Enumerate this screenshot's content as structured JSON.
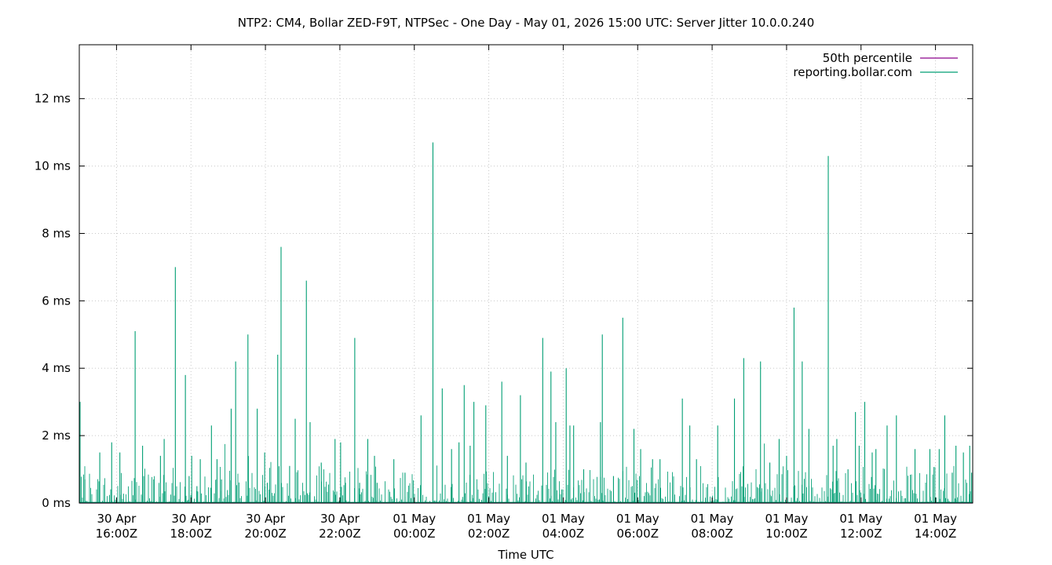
{
  "chart_data": {
    "type": "line",
    "title": "NTP2: CM4, Bollar ZED-F9T, NTPSec - One Day - May 01, 2026 15:00 UTC: Server Jitter 10.0.0.240",
    "xlabel": "Time UTC",
    "ylabel": "",
    "x_unit": "hours relative to 2026-04-30 15:00Z",
    "xlim": [
      0.0,
      24.0
    ],
    "ylim": [
      0,
      13.6
    ],
    "grid": true,
    "legend_position": "top-right",
    "y_ticks": [
      {
        "value": 0,
        "label": "0 ms"
      },
      {
        "value": 2,
        "label": "2 ms"
      },
      {
        "value": 4,
        "label": "4 ms"
      },
      {
        "value": 6,
        "label": "6 ms"
      },
      {
        "value": 8,
        "label": "8 ms"
      },
      {
        "value": 10,
        "label": "10 ms"
      },
      {
        "value": 12,
        "label": "12 ms"
      }
    ],
    "x_ticks": [
      {
        "value": 1,
        "line1": "30 Apr",
        "line2": "16:00Z"
      },
      {
        "value": 3,
        "line1": "30 Apr",
        "line2": "18:00Z"
      },
      {
        "value": 5,
        "line1": "30 Apr",
        "line2": "20:00Z"
      },
      {
        "value": 7,
        "line1": "30 Apr",
        "line2": "22:00Z"
      },
      {
        "value": 9,
        "line1": "01 May",
        "line2": "00:00Z"
      },
      {
        "value": 11,
        "line1": "01 May",
        "line2": "02:00Z"
      },
      {
        "value": 13,
        "line1": "01 May",
        "line2": "04:00Z"
      },
      {
        "value": 15,
        "line1": "01 May",
        "line2": "06:00Z"
      },
      {
        "value": 17,
        "line1": "01 May",
        "line2": "08:00Z"
      },
      {
        "value": 19,
        "line1": "01 May",
        "line2": "10:00Z"
      },
      {
        "value": 21,
        "line1": "01 May",
        "line2": "12:00Z"
      },
      {
        "value": 23,
        "line1": "01 May",
        "line2": "14:00Z"
      }
    ],
    "series": [
      {
        "name": "50th percentile",
        "color": "#8b008b",
        "baseline": 0.0,
        "x": [
          0.0,
          24.0
        ],
        "values": [
          0.0,
          0.0
        ]
      },
      {
        "name": "reporting.bollar.com",
        "color": "#009e73",
        "baseline": 0.02,
        "x": [
          0.02,
          0.15,
          0.55,
          0.87,
          1.09,
          1.5,
          1.7,
          2.0,
          2.18,
          2.28,
          2.58,
          2.85,
          2.95,
          3.02,
          3.16,
          3.25,
          3.55,
          3.7,
          3.82,
          4.08,
          4.2,
          4.53,
          4.78,
          4.98,
          5.05,
          5.1,
          5.33,
          5.42,
          5.65,
          5.8,
          6.1,
          6.2,
          6.5,
          6.87,
          7.02,
          7.15,
          7.4,
          7.53,
          7.75,
          7.93,
          8.0,
          8.45,
          8.75,
          9.18,
          9.5,
          9.75,
          10.0,
          10.2,
          10.34,
          10.5,
          10.6,
          10.92,
          11.35,
          11.5,
          11.85,
          12.0,
          12.45,
          12.67,
          12.8,
          13.08,
          13.18,
          13.28,
          13.55,
          14.0,
          14.05,
          14.35,
          14.6,
          14.9,
          15.08,
          15.4,
          15.6,
          16.2,
          16.4,
          16.58,
          17.15,
          17.6,
          17.85,
          18.3,
          18.55,
          18.8,
          19.0,
          19.2,
          19.42,
          19.6,
          20.12,
          20.25,
          20.35,
          20.65,
          20.85,
          20.95,
          21.1,
          21.3,
          21.4,
          21.7,
          21.95,
          22.45,
          22.85,
          23.1,
          23.25,
          23.45,
          23.55,
          23.75,
          23.92,
          23.97
        ],
        "values": [
          3.0,
          0.7,
          1.5,
          1.8,
          1.5,
          5.1,
          1.7,
          0.7,
          1.4,
          1.9,
          7.0,
          3.8,
          0.8,
          1.4,
          0.5,
          1.3,
          2.3,
          1.3,
          0.7,
          2.8,
          4.2,
          5.0,
          2.8,
          1.5,
          0.6,
          0.4,
          4.4,
          7.6,
          1.1,
          2.5,
          6.6,
          2.4,
          1.2,
          1.9,
          1.8,
          0.6,
          4.9,
          0.6,
          1.9,
          1.4,
          0.6,
          1.3,
          0.9,
          2.6,
          10.7,
          3.4,
          1.6,
          1.8,
          3.5,
          1.7,
          3.0,
          2.9,
          3.6,
          1.4,
          3.2,
          1.2,
          4.9,
          3.9,
          2.4,
          4.0,
          2.3,
          2.3,
          1.0,
          2.4,
          5.0,
          0.8,
          5.5,
          2.2,
          1.6,
          1.3,
          1.3,
          3.1,
          2.3,
          1.3,
          2.3,
          3.1,
          4.3,
          4.2,
          1.2,
          1.9,
          1.4,
          5.8,
          4.2,
          2.2,
          10.3,
          1.7,
          1.9,
          1.0,
          2.7,
          1.7,
          3.0,
          1.5,
          1.6,
          2.3,
          2.6,
          1.6,
          1.6,
          1.6,
          2.6,
          0.9,
          1.7,
          1.5,
          1.7,
          0.9
        ]
      }
    ]
  }
}
